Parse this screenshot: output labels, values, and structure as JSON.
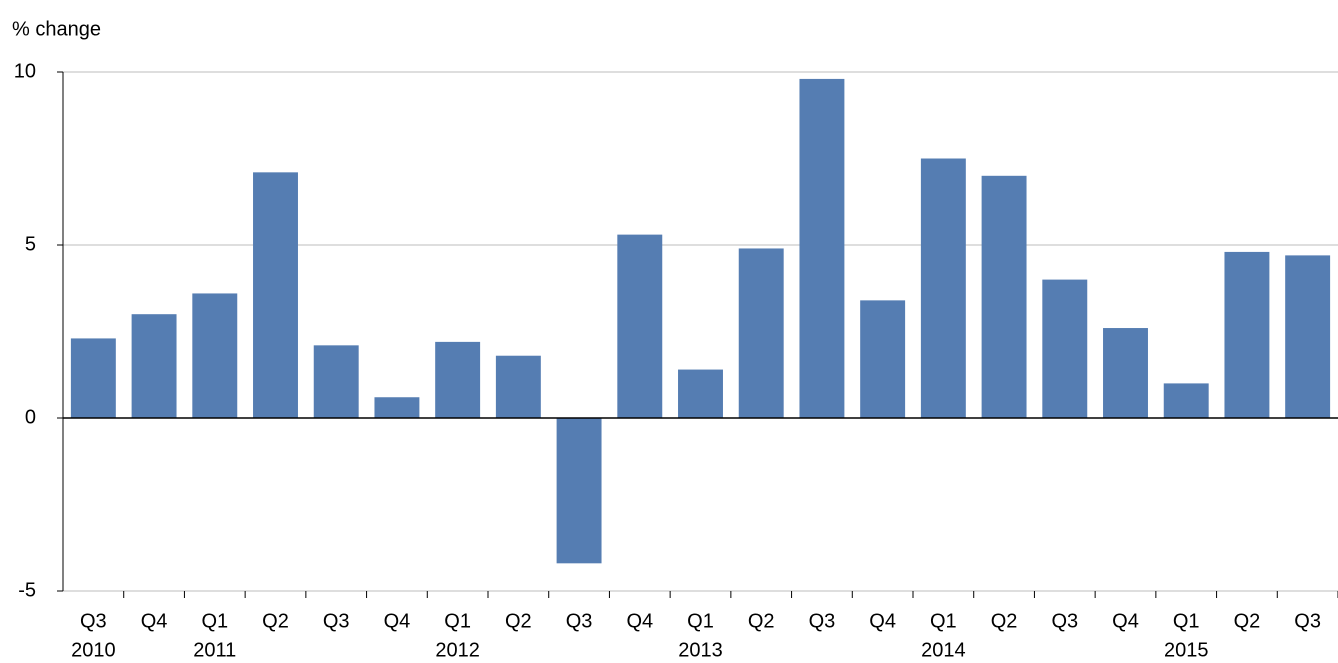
{
  "chart_data": {
    "type": "bar",
    "y_label": "% change",
    "categories": [
      "Q3",
      "Q4",
      "Q1",
      "Q2",
      "Q3",
      "Q4",
      "Q1",
      "Q2",
      "Q3",
      "Q4",
      "Q1",
      "Q2",
      "Q3",
      "Q4",
      "Q1",
      "Q2",
      "Q3",
      "Q4",
      "Q1",
      "Q2",
      "Q3"
    ],
    "years": [
      "2010",
      null,
      "2011",
      null,
      null,
      null,
      "2012",
      null,
      null,
      null,
      "2013",
      null,
      null,
      null,
      "2014",
      null,
      null,
      null,
      "2015",
      null,
      null
    ],
    "values": [
      2.3,
      3.0,
      3.6,
      7.1,
      2.1,
      0.6,
      2.2,
      1.8,
      -4.2,
      5.3,
      1.4,
      4.9,
      9.8,
      3.4,
      7.5,
      7.0,
      4.0,
      2.6,
      1.0,
      4.8,
      4.7
    ],
    "color": "#557db2",
    "ylim": [
      -5,
      10
    ],
    "yticks": [
      -5,
      0,
      5,
      10
    ],
    "grid": true
  }
}
